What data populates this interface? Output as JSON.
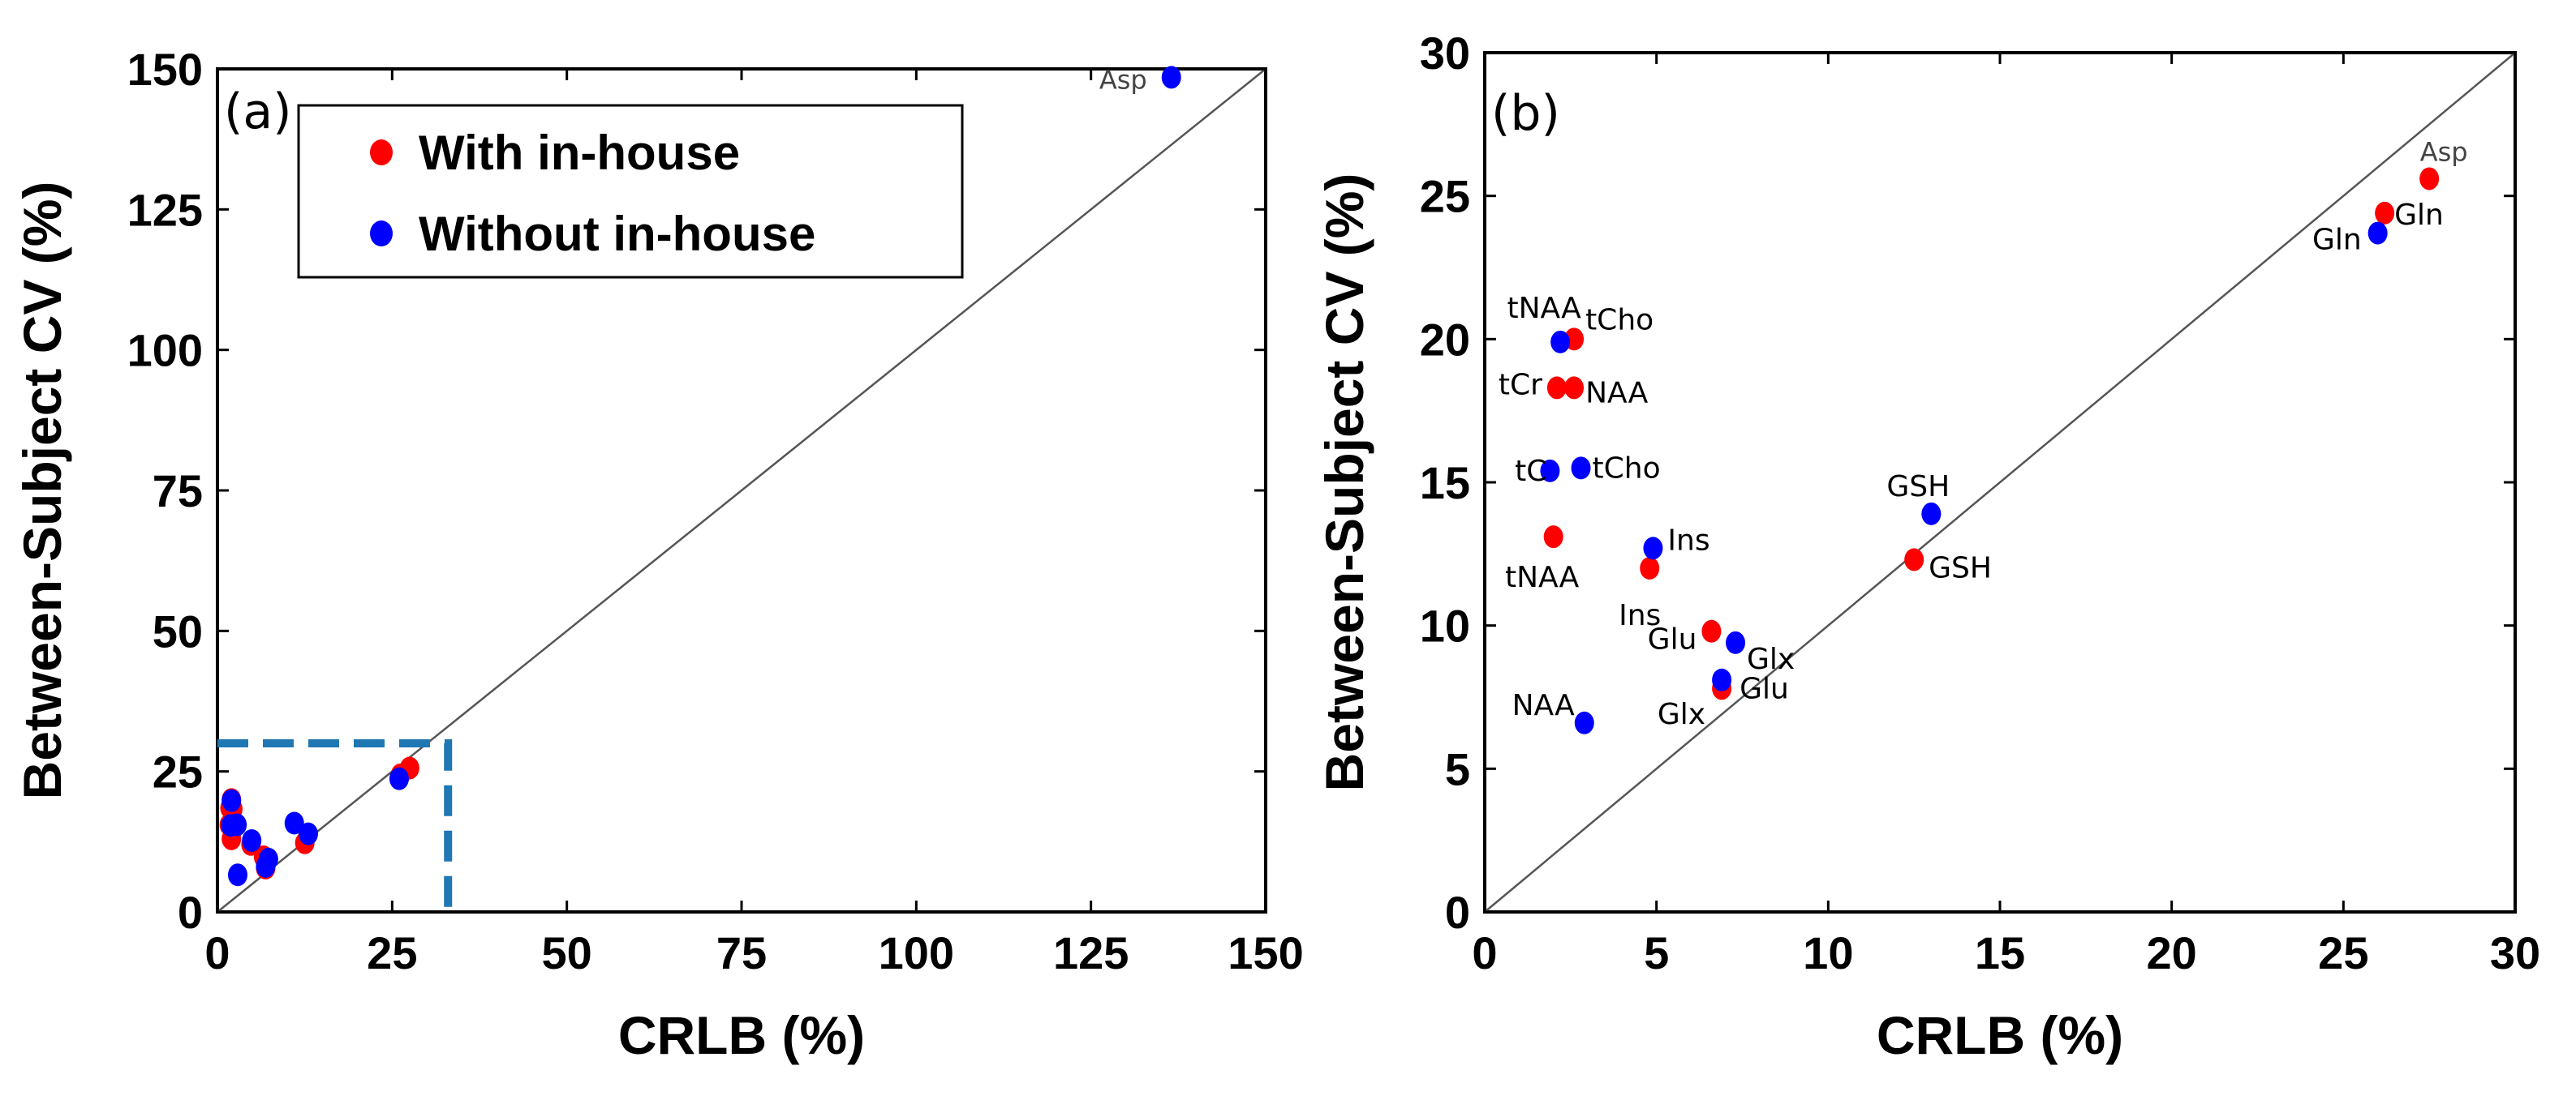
{
  "colors": {
    "with": "#ff0000",
    "without": "#0000ff",
    "zoom_box": "#1f77b4",
    "identity_line": "#555555"
  },
  "chart_data": [
    {
      "type": "scatter",
      "panel_label": "(a)",
      "xlabel": "CRLB (%)",
      "ylabel": "Between-Subject CV (%)",
      "xlim": [
        0,
        150
      ],
      "ylim": [
        0,
        150
      ],
      "xticks": [
        "0",
        "25",
        "50",
        "75",
        "100",
        "125",
        "150"
      ],
      "yticks": [
        "0",
        "25",
        "50",
        "75",
        "100",
        "125",
        "150"
      ],
      "reference_line": "y = x",
      "zoom_box": {
        "x": [
          0,
          33
        ],
        "y": [
          0,
          30
        ]
      },
      "legend": {
        "placement": "top-left",
        "entries": [
          "With in-house",
          "Without in-house"
        ]
      },
      "series": [
        {
          "name": "With in-house",
          "points": [
            [
              2,
              20
            ],
            [
              1.8,
              18.5
            ],
            [
              2.2,
              18.3
            ],
            [
              1.7,
              15.5
            ],
            [
              2,
              13
            ],
            [
              4.8,
              12
            ],
            [
              12.5,
              12.3
            ],
            [
              6.6,
              9.8
            ],
            [
              6.9,
              7.8
            ],
            [
              26.2,
              24.4
            ],
            [
              27.5,
              25.6
            ]
          ]
        },
        {
          "name": "Without in-house",
          "points": [
            [
              2,
              19.8
            ],
            [
              1.9,
              15.4
            ],
            [
              2.8,
              15.5
            ],
            [
              4.9,
              12.7
            ],
            [
              13,
              13.9
            ],
            [
              11,
              15.8
            ],
            [
              7.3,
              9.4
            ],
            [
              6.9,
              8.1
            ],
            [
              2.9,
              6.6
            ],
            [
              26,
              23.7
            ],
            [
              136.5,
              148.5
            ]
          ]
        }
      ],
      "annotations": [
        {
          "text": "Asp",
          "x": 136.5,
          "y": 148.5
        }
      ]
    },
    {
      "type": "scatter",
      "panel_label": "(b)",
      "xlabel": "CRLB (%)",
      "ylabel": "Between-Subject CV (%)",
      "xlim": [
        0,
        30
      ],
      "ylim": [
        0,
        30
      ],
      "xticks": [
        "0",
        "5",
        "10",
        "15",
        "20",
        "25",
        "30"
      ],
      "yticks": [
        "0",
        "5",
        "10",
        "15",
        "20",
        "25",
        "30"
      ],
      "reference_line": "y = x",
      "series": [
        {
          "name": "With in-house",
          "points": [
            {
              "label": "tCho",
              "x": 2.6,
              "y": 20
            },
            {
              "label": "tCr",
              "x": 2.1,
              "y": 18.3
            },
            {
              "label": "NAA",
              "x": 2.6,
              "y": 18.3
            },
            {
              "label": "tNAA",
              "x": 2.0,
              "y": 13.1
            },
            {
              "label": "Ins",
              "x": 4.8,
              "y": 12.0
            },
            {
              "label": "Glu",
              "x": 6.6,
              "y": 9.8
            },
            {
              "label": "Glu",
              "x": 6.9,
              "y": 7.8
            },
            {
              "label": "GSH",
              "x": 12.5,
              "y": 12.3
            },
            {
              "label": "Gln",
              "x": 26.2,
              "y": 24.4
            },
            {
              "label": "Asp",
              "x": 27.5,
              "y": 25.6
            }
          ]
        },
        {
          "name": "Without in-house",
          "points": [
            {
              "label": "tNAA",
              "x": 2.2,
              "y": 19.9
            },
            {
              "label": "tC",
              "x": 1.9,
              "y": 15.4
            },
            {
              "label": "tCho",
              "x": 2.8,
              "y": 15.5
            },
            {
              "label": "Ins",
              "x": 4.9,
              "y": 12.7
            },
            {
              "label": "Glx",
              "x": 7.3,
              "y": 9.4
            },
            {
              "label": "Glx",
              "x": 6.9,
              "y": 8.1
            },
            {
              "label": "NAA",
              "x": 2.9,
              "y": 6.6
            },
            {
              "label": "GSH",
              "x": 13.0,
              "y": 13.9
            },
            {
              "label": "Gln",
              "x": 26.0,
              "y": 23.7
            }
          ]
        }
      ]
    }
  ]
}
